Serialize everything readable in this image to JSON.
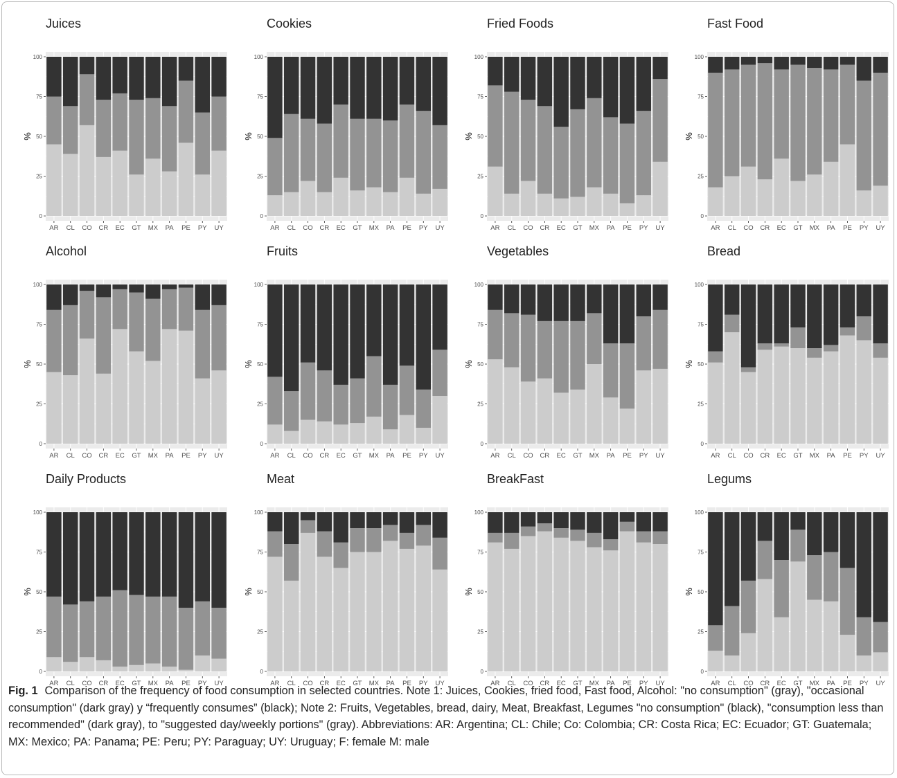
{
  "chart_data": [
    {
      "type": "bar",
      "stacked": true,
      "title": "Juices",
      "ylabel": "%",
      "ylim": [
        0,
        100
      ],
      "yticks": [
        0,
        25,
        50,
        75,
        100
      ],
      "grid": true,
      "categories": [
        "AR",
        "CL",
        "CO",
        "CR",
        "EC",
        "GT",
        "MX",
        "PA",
        "PE",
        "PY",
        "UY"
      ],
      "series": [
        {
          "values": [
            45,
            39,
            57,
            37,
            41,
            26,
            36,
            28,
            46,
            26,
            41
          ]
        },
        {
          "values": [
            30,
            30,
            32,
            36,
            36,
            47,
            38,
            41,
            39,
            39,
            34
          ]
        },
        {
          "values": [
            25,
            31,
            11,
            27,
            23,
            27,
            26,
            31,
            15,
            35,
            25
          ]
        }
      ]
    },
    {
      "type": "bar",
      "stacked": true,
      "title": "Cookies",
      "ylabel": "%",
      "ylim": [
        0,
        100
      ],
      "yticks": [
        0,
        25,
        50,
        75,
        100
      ],
      "grid": true,
      "categories": [
        "AR",
        "CL",
        "CO",
        "CR",
        "EC",
        "GT",
        "MX",
        "PA",
        "PE",
        "PY",
        "UY"
      ],
      "series": [
        {
          "values": [
            13,
            15,
            22,
            15,
            24,
            16,
            18,
            15,
            24,
            14,
            17
          ]
        },
        {
          "values": [
            36,
            49,
            39,
            43,
            46,
            45,
            43,
            45,
            46,
            52,
            40
          ]
        },
        {
          "values": [
            51,
            36,
            39,
            42,
            30,
            39,
            39,
            40,
            30,
            34,
            43
          ]
        }
      ]
    },
    {
      "type": "bar",
      "stacked": true,
      "title": "Fried Foods",
      "ylabel": "%",
      "ylim": [
        0,
        100
      ],
      "yticks": [
        0,
        25,
        50,
        75,
        100
      ],
      "grid": true,
      "categories": [
        "AR",
        "CL",
        "CO",
        "CR",
        "EC",
        "GT",
        "MX",
        "PA",
        "PE",
        "PY",
        "UY"
      ],
      "series": [
        {
          "values": [
            31,
            14,
            22,
            14,
            11,
            12,
            18,
            14,
            8,
            13,
            34
          ]
        },
        {
          "values": [
            51,
            64,
            51,
            55,
            45,
            55,
            56,
            48,
            50,
            53,
            52
          ]
        },
        {
          "values": [
            18,
            22,
            27,
            31,
            44,
            33,
            26,
            38,
            42,
            34,
            14
          ]
        }
      ]
    },
    {
      "type": "bar",
      "stacked": true,
      "title": "Fast Food",
      "ylabel": "%",
      "ylim": [
        0,
        100
      ],
      "yticks": [
        0,
        25,
        50,
        75,
        100
      ],
      "grid": true,
      "categories": [
        "AR",
        "CL",
        "CO",
        "CR",
        "EC",
        "GT",
        "MX",
        "PA",
        "PE",
        "PY",
        "UY"
      ],
      "series": [
        {
          "values": [
            18,
            25,
            31,
            23,
            36,
            22,
            26,
            34,
            45,
            16,
            19
          ]
        },
        {
          "values": [
            72,
            67,
            64,
            73,
            56,
            73,
            67,
            58,
            50,
            69,
            71
          ]
        },
        {
          "values": [
            10,
            8,
            5,
            4,
            8,
            5,
            7,
            8,
            5,
            15,
            10
          ]
        }
      ]
    },
    {
      "type": "bar",
      "stacked": true,
      "title": "Alcohol",
      "ylabel": "%",
      "ylim": [
        0,
        100
      ],
      "yticks": [
        0,
        25,
        50,
        75,
        100
      ],
      "grid": true,
      "categories": [
        "AR",
        "CL",
        "CO",
        "CR",
        "EC",
        "GT",
        "MX",
        "PA",
        "PE",
        "PY",
        "UY"
      ],
      "series": [
        {
          "values": [
            45,
            43,
            66,
            44,
            72,
            58,
            52,
            72,
            71,
            41,
            46
          ]
        },
        {
          "values": [
            39,
            44,
            30,
            48,
            25,
            37,
            39,
            25,
            27,
            43,
            41
          ]
        },
        {
          "values": [
            16,
            13,
            4,
            8,
            3,
            5,
            9,
            3,
            2,
            16,
            13
          ]
        }
      ]
    },
    {
      "type": "bar",
      "stacked": true,
      "title": "Fruits",
      "ylabel": "%",
      "ylim": [
        0,
        100
      ],
      "yticks": [
        0,
        25,
        50,
        75,
        100
      ],
      "grid": true,
      "categories": [
        "AR",
        "CL",
        "CO",
        "CR",
        "EC",
        "GT",
        "MX",
        "PA",
        "PE",
        "PY",
        "UY"
      ],
      "series": [
        {
          "values": [
            12,
            8,
            15,
            14,
            12,
            13,
            17,
            9,
            18,
            10,
            30
          ]
        },
        {
          "values": [
            30,
            25,
            36,
            32,
            25,
            28,
            38,
            28,
            31,
            24,
            29
          ]
        },
        {
          "values": [
            58,
            67,
            49,
            54,
            63,
            59,
            45,
            63,
            51,
            66,
            41
          ]
        }
      ]
    },
    {
      "type": "bar",
      "stacked": true,
      "title": "Vegetables",
      "ylabel": "%",
      "ylim": [
        0,
        100
      ],
      "yticks": [
        0,
        25,
        50,
        75,
        100
      ],
      "grid": true,
      "categories": [
        "AR",
        "CL",
        "CO",
        "CR",
        "EC",
        "GT",
        "MX",
        "PA",
        "PE",
        "PY",
        "UY"
      ],
      "series": [
        {
          "values": [
            53,
            48,
            39,
            41,
            32,
            34,
            50,
            29,
            22,
            46,
            47
          ]
        },
        {
          "values": [
            31,
            34,
            42,
            36,
            45,
            43,
            32,
            34,
            41,
            34,
            37
          ]
        },
        {
          "values": [
            16,
            18,
            19,
            23,
            23,
            23,
            18,
            37,
            37,
            20,
            16
          ]
        }
      ]
    },
    {
      "type": "bar",
      "stacked": true,
      "title": "Bread",
      "ylabel": "%",
      "ylim": [
        0,
        100
      ],
      "yticks": [
        0,
        25,
        50,
        75,
        100
      ],
      "grid": true,
      "categories": [
        "AR",
        "CL",
        "CO",
        "CR",
        "EC",
        "GT",
        "MX",
        "PA",
        "PE",
        "PY",
        "UY"
      ],
      "series": [
        {
          "values": [
            51,
            70,
            45,
            59,
            61,
            60,
            54,
            58,
            68,
            65,
            54
          ]
        },
        {
          "values": [
            7,
            11,
            3,
            4,
            2,
            13,
            6,
            4,
            5,
            15,
            9
          ]
        },
        {
          "values": [
            42,
            19,
            52,
            37,
            37,
            27,
            40,
            38,
            27,
            20,
            37
          ]
        }
      ]
    },
    {
      "type": "bar",
      "stacked": true,
      "title": "Daily Products",
      "ylabel": "%",
      "ylim": [
        0,
        100
      ],
      "yticks": [
        0,
        25,
        50,
        75,
        100
      ],
      "grid": true,
      "categories": [
        "AR",
        "CL",
        "CO",
        "CR",
        "EC",
        "GT",
        "MX",
        "PA",
        "PE",
        "PY",
        "UY"
      ],
      "series": [
        {
          "values": [
            9,
            6,
            9,
            7,
            3,
            4,
            5,
            3,
            1,
            10,
            8
          ]
        },
        {
          "values": [
            38,
            36,
            35,
            40,
            48,
            44,
            42,
            44,
            39,
            34,
            32
          ]
        },
        {
          "values": [
            53,
            58,
            56,
            53,
            49,
            52,
            53,
            53,
            60,
            56,
            60
          ]
        }
      ]
    },
    {
      "type": "bar",
      "stacked": true,
      "title": "Meat",
      "ylabel": "%",
      "ylim": [
        0,
        100
      ],
      "yticks": [
        0,
        25,
        50,
        75,
        100
      ],
      "grid": true,
      "categories": [
        "AR",
        "CL",
        "CO",
        "CR",
        "EC",
        "GT",
        "MX",
        "PA",
        "PE",
        "PY",
        "UY"
      ],
      "series": [
        {
          "values": [
            72,
            57,
            87,
            72,
            65,
            75,
            75,
            82,
            77,
            79,
            64
          ]
        },
        {
          "values": [
            16,
            23,
            8,
            16,
            16,
            15,
            15,
            10,
            10,
            13,
            20
          ]
        },
        {
          "values": [
            12,
            20,
            5,
            12,
            19,
            10,
            10,
            8,
            13,
            8,
            16
          ]
        }
      ]
    },
    {
      "type": "bar",
      "stacked": true,
      "title": "BreakFast",
      "ylabel": "%",
      "ylim": [
        0,
        100
      ],
      "yticks": [
        0,
        25,
        50,
        75,
        100
      ],
      "grid": true,
      "categories": [
        "AR",
        "CL",
        "CO",
        "CR",
        "EC",
        "GT",
        "MX",
        "PA",
        "PE",
        "PY",
        "UY"
      ],
      "series": [
        {
          "values": [
            81,
            77,
            85,
            88,
            84,
            82,
            78,
            76,
            88,
            81,
            80
          ]
        },
        {
          "values": [
            6,
            10,
            6,
            5,
            6,
            7,
            9,
            7,
            6,
            7,
            8
          ]
        },
        {
          "values": [
            13,
            13,
            9,
            7,
            10,
            11,
            13,
            17,
            6,
            12,
            12
          ]
        }
      ]
    },
    {
      "type": "bar",
      "stacked": true,
      "title": "Legums",
      "ylabel": "%",
      "ylim": [
        0,
        100
      ],
      "yticks": [
        0,
        25,
        50,
        75,
        100
      ],
      "grid": true,
      "categories": [
        "AR",
        "CL",
        "CO",
        "CR",
        "EC",
        "GT",
        "MX",
        "PA",
        "PE",
        "PY",
        "UY"
      ],
      "series": [
        {
          "values": [
            13,
            10,
            24,
            58,
            34,
            69,
            45,
            44,
            23,
            10,
            12
          ]
        },
        {
          "values": [
            16,
            31,
            33,
            24,
            36,
            20,
            28,
            31,
            42,
            24,
            19
          ]
        },
        {
          "values": [
            71,
            59,
            43,
            18,
            30,
            11,
            27,
            25,
            35,
            66,
            69
          ]
        }
      ]
    }
  ],
  "colors": {
    "light": "#cccccc",
    "mid": "#939393",
    "dark": "#333333",
    "panel_bg": "#ebebeb",
    "grid": "#ffffff",
    "text": "#4d4d4d",
    "title": "#222222"
  },
  "caption": {
    "label": "Fig. 1",
    "text": "Comparison of the frequency of food consumption in selected countries. Note 1: Juices, Cookies, fried food, Fast food, Alcohol: \"no consumption\" (gray), \"occasional consumption\" (dark gray) y “frequently consumes” (black); Note 2: Fruits, Vegetables, bread, dairy, Meat, Breakfast, Legumes \"no consumption\" (black), \"consumption less than recommended\" (dark gray), to \"suggested day/weekly portions\" (gray). Abbreviations: AR: Argentina; CL: Chile; Co: Colombia; CR: Costa Rica; EC: Ecuador; GT: Guatemala; MX: Mexico; PA: Panama; PE: Peru; PY: Paraguay; UY: Uruguay; F: female M: male"
  }
}
